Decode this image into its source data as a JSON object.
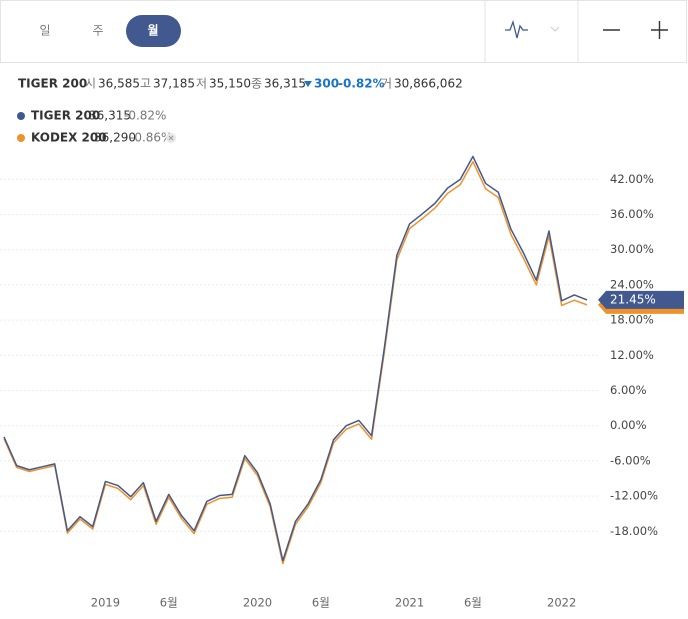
{
  "tabs": [
    "일",
    "주",
    "월"
  ],
  "quote": {
    "name": "TIGER 200",
    "items": [
      {
        "label": "시",
        "value": "36,585"
      },
      {
        "label": "고",
        "value": "37,185"
      },
      {
        "label": "저",
        "value": "35,150"
      },
      {
        "label": "종",
        "value": "36,315"
      }
    ],
    "change": "300",
    "change_pct": "-0.82%",
    "volume_label": "거",
    "volume": "30,866,062"
  },
  "chart_data": {
    "type": "line",
    "categories": [
      null,
      null,
      null,
      null,
      null,
      null,
      null,
      null,
      "2019",
      null,
      null,
      null,
      null,
      "6월",
      null,
      null,
      null,
      null,
      null,
      null,
      "2020",
      null,
      null,
      null,
      null,
      "6월",
      null,
      null,
      null,
      null,
      null,
      null,
      "2021",
      null,
      null,
      null,
      null,
      "6월",
      null,
      null,
      null,
      null,
      null,
      null,
      "2022",
      null,
      null
    ],
    "series": [
      {
        "name": "TIGER 200",
        "last": "36,315",
        "change": "-0.82%",
        "color": "#42598f",
        "end_label": "21.45%",
        "values": [
          -1.9,
          -6.8,
          -7.5,
          -7.0,
          -6.5,
          -17.9,
          -15.5,
          -17.2,
          -9.5,
          -10.2,
          -12.1,
          -9.7,
          -16.3,
          -11.7,
          -15.3,
          -17.9,
          -12.9,
          -11.9,
          -11.7,
          -5.1,
          -8.0,
          -13.3,
          -23.0,
          -16.3,
          -13.3,
          -9.2,
          -2.4,
          0.0,
          0.9,
          -1.7,
          13.1,
          29.1,
          34.4,
          36.1,
          37.9,
          40.5,
          42.0,
          45.9,
          41.3,
          39.8,
          33.5,
          29.4,
          24.8,
          33.2,
          21.3,
          22.3,
          21.45
        ]
      },
      {
        "name": "KODEX 200",
        "last": "36,290",
        "change": "-0.86%",
        "color": "#f0922b",
        "values": [
          -2.2,
          -7.1,
          -7.8,
          -7.3,
          -6.8,
          -18.3,
          -15.9,
          -17.6,
          -10.0,
          -10.7,
          -12.6,
          -10.2,
          -16.8,
          -12.2,
          -15.8,
          -18.4,
          -13.4,
          -12.4,
          -12.2,
          -5.6,
          -8.5,
          -13.8,
          -23.5,
          -16.8,
          -13.8,
          -9.7,
          -2.9,
          -0.6,
          0.3,
          -2.3,
          12.4,
          28.3,
          33.6,
          35.3,
          37.1,
          39.6,
          41.1,
          45.0,
          40.4,
          38.9,
          32.6,
          28.5,
          24.0,
          32.3,
          20.5,
          21.4,
          20.6
        ]
      }
    ],
    "ylim": [
      -28,
      47
    ],
    "yticks": [
      {
        "value": -18,
        "label": "-18.00%"
      },
      {
        "value": -12,
        "label": "-12.00%"
      },
      {
        "value": -6,
        "label": "-6.00%"
      },
      {
        "value": 0,
        "label": "0.00%"
      },
      {
        "value": 6,
        "label": "6.00%"
      },
      {
        "value": 12,
        "label": "12.00%"
      },
      {
        "value": 18,
        "label": "18.00%"
      },
      {
        "value": 24,
        "label": "24.00%"
      },
      {
        "value": 30,
        "label": "30.00%"
      },
      {
        "value": 36,
        "label": "36.00%"
      },
      {
        "value": 42,
        "label": "42.00%"
      }
    ],
    "grid": true
  }
}
